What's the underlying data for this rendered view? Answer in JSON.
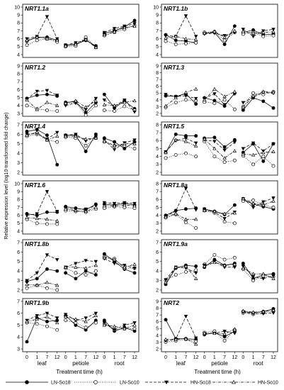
{
  "y_axis_label": "Relative expression level (log10-transformed fold change)",
  "x_axis_label": "Treatment time (h)",
  "x_tick_labels": [
    "0",
    "1",
    "7",
    "12"
  ],
  "tissues": [
    "leaf",
    "petiole",
    "root"
  ],
  "series": [
    {
      "name": "LN-So18",
      "line": "solid",
      "marker": "filled-circle"
    },
    {
      "name": "LN-So10",
      "line": "dotted",
      "marker": "open-circle"
    },
    {
      "name": "HN-So18",
      "line": "dashed",
      "marker": "filled-triangle-down"
    },
    {
      "name": "HN-So10",
      "line": "dashdot",
      "marker": "open-triangle-up"
    }
  ],
  "chart_data": [
    {
      "type": "line",
      "gene": "NRT1.1a",
      "y_ticks": [
        4,
        5,
        6,
        7,
        8,
        9,
        10
      ],
      "ylim": [
        4,
        10
      ],
      "values": {
        "leaf": {
          "LN-So18": [
            5.7,
            6.2,
            6.2,
            5.8
          ],
          "LN-So10": [
            5.2,
            5.8,
            6.0,
            5.6
          ],
          "HN-So18": [
            6.0,
            6.3,
            8.8,
            6.0
          ],
          "HN-So10": [
            5.8,
            6.2,
            6.0,
            5.8
          ]
        },
        "petiole": {
          "LN-So18": [
            5.2,
            5.3,
            5.8,
            5.1
          ],
          "LN-So10": [
            5.0,
            5.1,
            6.2,
            4.9
          ],
          "HN-So18": [
            5.2,
            5.5,
            5.9,
            5.0
          ],
          "HN-So10": [
            5.1,
            5.3,
            5.9,
            4.9
          ]
        },
        "root": {
          "LN-So18": [
            6.7,
            7.0,
            7.5,
            8.3
          ],
          "LN-So10": [
            6.4,
            6.8,
            7.2,
            7.7
          ],
          "HN-So18": [
            6.8,
            7.3,
            7.6,
            7.9
          ],
          "HN-So10": [
            6.5,
            6.9,
            7.4,
            7.6
          ]
        }
      }
    },
    {
      "type": "line",
      "gene": "NRT1.1b",
      "y_ticks": [
        4,
        5,
        6,
        7,
        8,
        9,
        10
      ],
      "ylim": [
        4,
        10
      ],
      "values": {
        "leaf": {
          "LN-So18": [
            6.5,
            5.8,
            5.7,
            5.5
          ],
          "LN-So10": [
            5.7,
            5.3,
            5.4,
            5.5
          ],
          "HN-So18": [
            6.4,
            6.3,
            8.9,
            6.3
          ],
          "HN-So10": [
            6.1,
            6.3,
            6.0,
            5.9
          ]
        },
        "petiole": {
          "LN-So18": [
            6.7,
            6.8,
            5.3,
            7.6
          ],
          "LN-So10": [
            6.8,
            6.9,
            5.8,
            6.8
          ],
          "HN-So18": [
            6.6,
            6.7,
            6.4,
            6.8
          ],
          "HN-So10": [
            6.7,
            6.9,
            6.2,
            7.0
          ]
        },
        "root": {
          "LN-So18": [
            6.8,
            7.1,
            6.5,
            6.6
          ],
          "LN-So10": [
            6.6,
            6.8,
            6.3,
            6.4
          ],
          "HN-So18": [
            7.2,
            6.3,
            7.0,
            7.2
          ],
          "HN-So10": [
            6.9,
            6.7,
            6.8,
            6.9
          ]
        }
      }
    },
    {
      "type": "line",
      "gene": "NRT1.2",
      "y_ticks": [
        3,
        4,
        5,
        6,
        7,
        8,
        9
      ],
      "ylim": [
        3,
        9
      ],
      "values": {
        "leaf": {
          "LN-So18": [
            4.9,
            5.3,
            5.4,
            5.2
          ],
          "LN-So10": [
            4.0,
            3.6,
            3.4,
            3.3
          ],
          "HN-So18": [
            4.8,
            5.8,
            5.9,
            5.3
          ],
          "HN-So10": [
            4.7,
            3.5,
            4.4,
            4.0
          ]
        },
        "petiole": {
          "LN-So18": [
            4.4,
            4.5,
            3.1,
            4.4
          ],
          "LN-So10": [
            4.2,
            4.4,
            2.8,
            4.0
          ],
          "HN-So18": [
            4.0,
            4.3,
            3.5,
            4.9
          ],
          "HN-So10": [
            4.3,
            4.6,
            3.8,
            4.6
          ]
        },
        "root": {
          "LN-So18": [
            5.4,
            3.7,
            4.6,
            3.6
          ],
          "LN-So10": [
            3.4,
            3.3,
            3.9,
            3.4
          ],
          "HN-So18": [
            4.7,
            3.9,
            4.7,
            3.2
          ],
          "HN-So10": [
            4.1,
            4.0,
            4.4,
            4.6
          ]
        }
      }
    },
    {
      "type": "line",
      "gene": "NRT1.3",
      "y_ticks": [
        2,
        3,
        4,
        5,
        6,
        7,
        8,
        9
      ],
      "ylim": [
        2,
        9
      ],
      "values": {
        "leaf": {
          "LN-So18": [
            4.6,
            4.5,
            4.9,
            3.4
          ],
          "LN-So10": [
            2.9,
            3.6,
            4.0,
            3.9
          ],
          "HN-So18": [
            4.8,
            4.5,
            4.6,
            4.2
          ],
          "HN-So10": [
            3.1,
            4.3,
            5.1,
            5.6
          ]
        },
        "petiole": {
          "LN-So18": [
            4.3,
            3.9,
            3.1,
            5.0
          ],
          "LN-So10": [
            3.7,
            3.5,
            4.0,
            2.6
          ],
          "HN-So18": [
            4.2,
            4.9,
            3.3,
            4.9
          ],
          "HN-So10": [
            4.0,
            5.6,
            4.5,
            5.2
          ]
        },
        "root": {
          "LN-So18": [
            2.5,
            4.3,
            3.8,
            2.8
          ],
          "LN-So10": [
            3.0,
            5.0,
            4.8,
            5.2
          ],
          "HN-So18": [
            3.6,
            4.4,
            5.1,
            5.0
          ],
          "HN-So10": [
            2.9,
            4.6,
            5.2,
            5.1
          ]
        }
      }
    },
    {
      "type": "line",
      "gene": "NRT1.4",
      "y_ticks": [
        2,
        3,
        4,
        5,
        6,
        7
      ],
      "ylim": [
        2,
        7
      ],
      "values": {
        "leaf": {
          "LN-So18": [
            6.3,
            6.5,
            5.9,
            2.8
          ],
          "LN-So10": [
            5.8,
            6.0,
            5.4,
            5.2
          ],
          "HN-So18": [
            6.0,
            6.1,
            5.5,
            6.2
          ],
          "HN-So10": [
            5.9,
            6.2,
            5.4,
            5.8
          ]
        },
        "petiole": {
          "LN-So18": [
            5.9,
            5.9,
            4.2,
            6.0
          ],
          "LN-So10": [
            5.7,
            5.6,
            4.8,
            5.6
          ],
          "HN-So18": [
            5.9,
            6.0,
            5.3,
            5.7
          ],
          "HN-So10": [
            5.8,
            5.8,
            5.5,
            5.6
          ]
        },
        "root": {
          "LN-So18": [
            5.6,
            5.2,
            4.5,
            5.2
          ],
          "LN-So10": [
            5.2,
            4.8,
            4.8,
            4.5
          ],
          "HN-So18": [
            5.4,
            4.4,
            5.1,
            5.4
          ],
          "HN-So10": [
            5.3,
            4.8,
            5.0,
            5.0
          ]
        }
      }
    },
    {
      "type": "line",
      "gene": "NRT1.5",
      "y_ticks": [
        2,
        3,
        4,
        5,
        6,
        7,
        8
      ],
      "ylim": [
        2,
        8
      ],
      "values": {
        "leaf": {
          "LN-So18": [
            4.5,
            6.8,
            6.6,
            6.6
          ],
          "LN-So10": [
            3.8,
            4.2,
            4.4,
            4.0
          ],
          "HN-So18": [
            4.6,
            6.0,
            6.3,
            5.7
          ],
          "HN-So10": [
            4.5,
            6.1,
            5.9,
            5.3
          ]
        },
        "petiole": {
          "LN-So18": [
            6.3,
            6.4,
            5.2,
            6.1
          ],
          "LN-So10": [
            5.9,
            4.0,
            3.3,
            3.5
          ],
          "HN-So18": [
            6.1,
            5.9,
            4.8,
            5.8
          ],
          "HN-So10": [
            6.2,
            5.0,
            3.8,
            4.7
          ]
        },
        "root": {
          "LN-So18": [
            4.5,
            5.6,
            3.4,
            5.6
          ],
          "LN-So10": [
            4.1,
            3.0,
            4.0,
            2.8
          ],
          "HN-So18": [
            5.0,
            5.7,
            4.7,
            5.6
          ],
          "HN-So10": [
            4.3,
            4.2,
            4.5,
            4.6
          ]
        }
      }
    },
    {
      "type": "line",
      "gene": "NRT1.6",
      "y_ticks": [
        4,
        5,
        6,
        7,
        8,
        9,
        10
      ],
      "ylim": [
        4,
        10
      ],
      "values": {
        "leaf": {
          "LN-So18": [
            6.2,
            6.0,
            6.4,
            6.4
          ],
          "LN-So10": [
            5.5,
            5.0,
            4.9,
            4.9
          ],
          "HN-So18": [
            6.0,
            6.2,
            9.0,
            6.5
          ],
          "HN-So10": [
            5.7,
            5.6,
            5.5,
            5.3
          ]
        },
        "petiole": {
          "LN-So18": [
            7.1,
            6.9,
            6.7,
            7.4
          ],
          "LN-So10": [
            6.6,
            6.5,
            6.4,
            6.8
          ],
          "HN-So18": [
            6.9,
            6.8,
            6.8,
            7.2
          ],
          "HN-So10": [
            6.8,
            6.6,
            6.5,
            7.0
          ]
        },
        "root": {
          "LN-So18": [
            7.4,
            7.3,
            7.5,
            7.3
          ],
          "LN-So10": [
            6.9,
            7.1,
            7.0,
            6.9
          ],
          "HN-So18": [
            7.6,
            7.5,
            7.6,
            7.5
          ],
          "HN-So10": [
            7.2,
            7.2,
            7.3,
            7.2
          ]
        }
      }
    },
    {
      "type": "line",
      "gene": "NRT1.8a",
      "y_ticks": [
        2,
        3,
        4,
        5,
        6,
        7,
        8
      ],
      "ylim": [
        2,
        8
      ],
      "values": {
        "leaf": {
          "LN-So18": [
            4.0,
            4.6,
            4.8,
            4.9
          ],
          "LN-So10": [
            3.7,
            4.1,
            3.1,
            2.4
          ],
          "HN-So18": [
            3.9,
            4.5,
            7.4,
            4.7
          ],
          "HN-So10": [
            3.8,
            4.2,
            3.5,
            3.5
          ]
        },
        "petiole": {
          "LN-So18": [
            4.8,
            4.5,
            4.1,
            5.3
          ],
          "LN-So10": [
            4.6,
            4.3,
            3.2,
            3.0
          ],
          "HN-So18": [
            4.8,
            4.4,
            3.6,
            4.4
          ],
          "HN-So10": [
            4.6,
            4.5,
            4.2,
            4.3
          ]
        },
        "root": {
          "LN-So18": [
            6.0,
            5.4,
            5.1,
            4.8
          ],
          "LN-So10": [
            5.8,
            5.9,
            5.3,
            5.0
          ],
          "HN-So18": [
            6.1,
            5.0,
            5.7,
            6.2
          ],
          "HN-So10": [
            6.1,
            5.5,
            5.3,
            5.8
          ]
        }
      }
    },
    {
      "type": "line",
      "gene": "NRT1.8b",
      "y_ticks": [
        2,
        3,
        4,
        5,
        6,
        7
      ],
      "ylim": [
        2,
        7
      ],
      "values": {
        "leaf": {
          "LN-So18": [
            2.9,
            3.2,
            4.2,
            4.0
          ],
          "LN-So10": [
            2.2,
            2.5,
            2.2,
            2.0
          ],
          "HN-So18": [
            3.0,
            3.8,
            5.7,
            5.2
          ],
          "HN-So10": [
            2.6,
            2.5,
            2.8,
            2.5
          ]
        },
        "petiole": {
          "LN-So18": [
            3.8,
            3.2,
            4.0,
            3.6
          ],
          "LN-So10": [
            4.3,
            3.8,
            3.6,
            4.0
          ],
          "HN-So18": [
            4.4,
            4.8,
            5.1,
            5.0
          ],
          "HN-So10": [
            4.4,
            4.4,
            4.3,
            4.6
          ]
        },
        "root": {
          "LN-So18": [
            5.8,
            5.0,
            4.2,
            3.8
          ],
          "LN-So10": [
            5.5,
            5.3,
            4.3,
            4.3
          ],
          "HN-So18": [
            5.3,
            4.8,
            4.6,
            4.3
          ],
          "HN-So10": [
            5.4,
            5.2,
            4.4,
            4.7
          ]
        }
      }
    },
    {
      "type": "line",
      "gene": "NRT1.9a",
      "y_ticks": [
        2,
        3,
        4,
        5,
        6,
        7
      ],
      "ylim": [
        2,
        7
      ],
      "values": {
        "leaf": {
          "LN-So18": [
            2.6,
            4.3,
            4.6,
            4.5
          ],
          "LN-So10": [
            3.0,
            3.6,
            3.9,
            4.1
          ],
          "HN-So18": [
            3.1,
            4.4,
            4.3,
            3.8
          ],
          "HN-So10": [
            2.8,
            4.4,
            4.5,
            3.2
          ]
        },
        "petiole": {
          "LN-So18": [
            4.4,
            5.2,
            4.6,
            4.8
          ],
          "LN-So10": [
            4.7,
            5.7,
            5.2,
            5.4
          ],
          "HN-So18": [
            4.6,
            5.0,
            4.4,
            4.4
          ],
          "HN-So10": [
            4.5,
            4.9,
            4.6,
            4.7
          ]
        },
        "root": {
          "LN-So18": [
            4.8,
            3.2,
            3.6,
            3.7
          ],
          "LN-So10": [
            4.2,
            3.0,
            3.5,
            3.4
          ],
          "HN-So18": [
            4.5,
            3.4,
            3.2,
            3.5
          ],
          "HN-So10": [
            4.3,
            3.7,
            3.7,
            3.2
          ]
        }
      }
    },
    {
      "type": "line",
      "gene": "NRT1.9b",
      "y_ticks": [
        3,
        4,
        5,
        6,
        7
      ],
      "ylim": [
        3,
        7
      ],
      "values": {
        "leaf": {
          "LN-So18": [
            3.6,
            5.6,
            5.3,
            5.4
          ],
          "LN-So10": [
            5.2,
            5.1,
            4.9,
            4.6
          ],
          "HN-So18": [
            5.4,
            5.8,
            6.0,
            5.6
          ],
          "HN-So10": [
            5.3,
            5.5,
            5.7,
            5.2
          ]
        },
        "petiole": {
          "LN-So18": [
            5.8,
            5.0,
            4.6,
            5.4
          ],
          "LN-So10": [
            5.4,
            5.2,
            4.8,
            5.2
          ],
          "HN-So18": [
            5.9,
            5.4,
            5.6,
            6.0
          ],
          "HN-So10": [
            5.7,
            5.5,
            5.3,
            5.8
          ]
        },
        "root": {
          "LN-So18": [
            5.4,
            4.5,
            4.8,
            4.5
          ],
          "LN-So10": [
            5.1,
            4.6,
            4.7,
            4.7
          ],
          "HN-So18": [
            5.2,
            4.6,
            5.0,
            5.2
          ],
          "HN-So10": [
            5.0,
            4.9,
            4.7,
            5.0
          ]
        }
      }
    },
    {
      "type": "line",
      "gene": "NRT2",
      "y_ticks": [
        2,
        3,
        4,
        5,
        6,
        7,
        8,
        9
      ],
      "ylim": [
        2,
        9
      ],
      "values": {
        "leaf": {
          "LN-So18": [
            6.3,
            3.5,
            3.5,
            3.4
          ],
          "LN-So10": [
            3.0,
            3.2,
            3.4,
            3.1
          ],
          "HN-So18": [
            3.2,
            3.4,
            6.8,
            3.6
          ],
          "HN-So10": [
            3.4,
            3.4,
            3.5,
            2.7
          ]
        },
        "petiole": {
          "LN-So18": [
            4.1,
            4.4,
            3.8,
            4.6
          ],
          "LN-So10": [
            4.4,
            4.6,
            3.2,
            4.8
          ],
          "HN-So18": [
            4.2,
            4.3,
            4.6,
            4.3
          ],
          "HN-So10": [
            4.3,
            4.3,
            4.2,
            4.9
          ]
        },
        "root": {
          "LN-So18": [
            7.5,
            7.3,
            7.5,
            7.9
          ],
          "LN-So10": [
            7.3,
            7.1,
            7.3,
            7.6
          ],
          "HN-So18": [
            7.4,
            7.2,
            7.2,
            7.3
          ],
          "HN-So10": [
            7.6,
            7.4,
            7.5,
            7.7
          ]
        }
      }
    }
  ]
}
